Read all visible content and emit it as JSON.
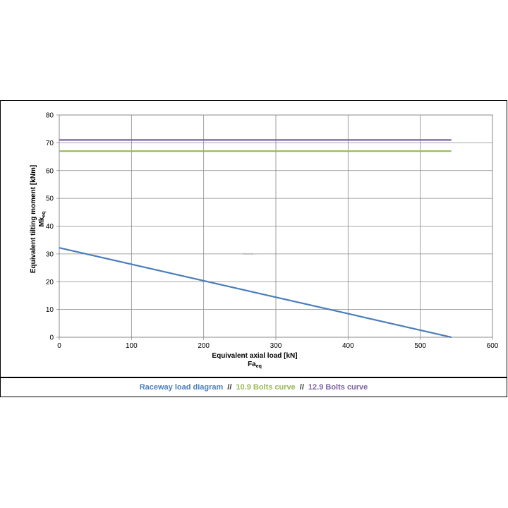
{
  "chart_data": {
    "type": "line",
    "xlabel": "Equivalent axial load [kN]",
    "xlabel_symbol": "Fa",
    "xlabel_subscript": "eq",
    "ylabel": "Equivalent tilting moment [kNm]",
    "ylabel_symbol": "Mk",
    "ylabel_subscript": "eq",
    "xlim": [
      0,
      600
    ],
    "ylim": [
      0,
      80
    ],
    "xticks": [
      0,
      100,
      200,
      300,
      400,
      500,
      600
    ],
    "yticks": [
      0,
      10,
      20,
      30,
      40,
      50,
      60,
      70,
      80
    ],
    "grid": true,
    "watermark": "Rollers by ...",
    "series": [
      {
        "name": "Raceway load diagram",
        "color": "#4a7ebb",
        "x": [
          0,
          543
        ],
        "y": [
          32.2,
          0
        ]
      },
      {
        "name": "10.9 Bolts curve",
        "color": "#98b954",
        "x": [
          0,
          543
        ],
        "y": [
          67,
          67
        ]
      },
      {
        "name": "12.9 Bolts curve",
        "color": "#7d60a0",
        "x": [
          0,
          543
        ],
        "y": [
          71,
          71
        ]
      }
    ]
  },
  "legend": {
    "separator": "//",
    "items": [
      {
        "label": "Raceway load diagram",
        "color": "#4a7ebb"
      },
      {
        "label": "10.9 Bolts curve",
        "color": "#98b954"
      },
      {
        "label": "12.9 Bolts curve",
        "color": "#7d60a0"
      }
    ]
  }
}
